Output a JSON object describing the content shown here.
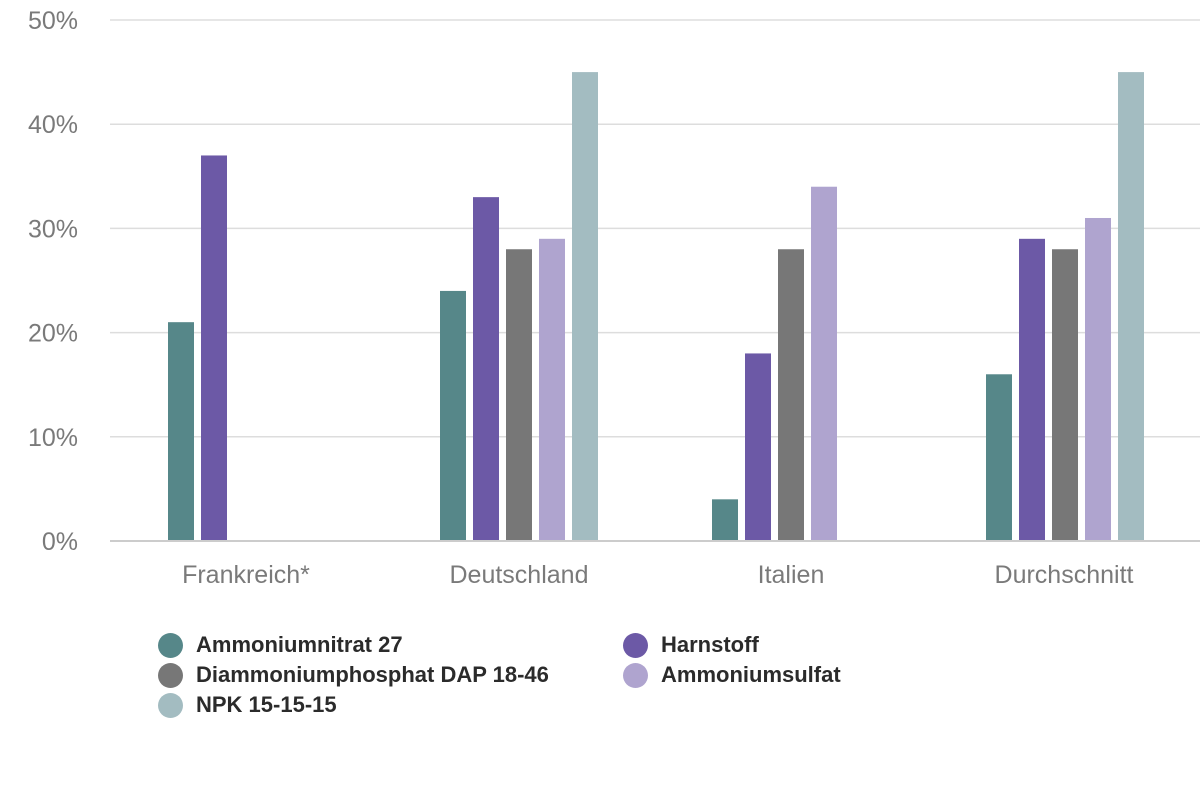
{
  "chart_data": {
    "type": "bar",
    "title": "",
    "xlabel": "",
    "ylabel": "",
    "ylim": [
      0,
      50
    ],
    "yticks": [
      0,
      10,
      20,
      30,
      40,
      50
    ],
    "ytick_labels": [
      "0%",
      "10%",
      "20%",
      "30%",
      "40%",
      "50%"
    ],
    "grid": true,
    "legend_position": "bottom",
    "categories": [
      "Frankreich*",
      "Deutschland",
      "Italien",
      "Durchschnitt"
    ],
    "series": [
      {
        "name": "Ammoniumnitrat 27",
        "color": "#568789",
        "values": [
          21,
          24,
          4,
          16
        ]
      },
      {
        "name": "Harnstoff",
        "color": "#6c59a6",
        "values": [
          37,
          33,
          18,
          29
        ]
      },
      {
        "name": "Diammoniumphosphat DAP 18-46",
        "color": "#777777",
        "values": [
          null,
          28,
          28,
          28
        ]
      },
      {
        "name": "Ammoniumsulfat",
        "color": "#afa4cf",
        "values": [
          null,
          29,
          34,
          31
        ]
      },
      {
        "name": "NPK 15-15-15",
        "color": "#a3bcc1",
        "values": [
          null,
          45,
          null,
          45
        ]
      }
    ]
  },
  "legend": {
    "items": [
      {
        "label": "Ammoniumnitrat 27",
        "color": "#568789"
      },
      {
        "label": "Harnstoff",
        "color": "#6c59a6"
      },
      {
        "label": "Diammoniumphosphat DAP 18-46",
        "color": "#777777"
      },
      {
        "label": "Ammoniumsulfat",
        "color": "#afa4cf"
      },
      {
        "label": "NPK 15-15-15",
        "color": "#a3bcc1"
      }
    ]
  }
}
